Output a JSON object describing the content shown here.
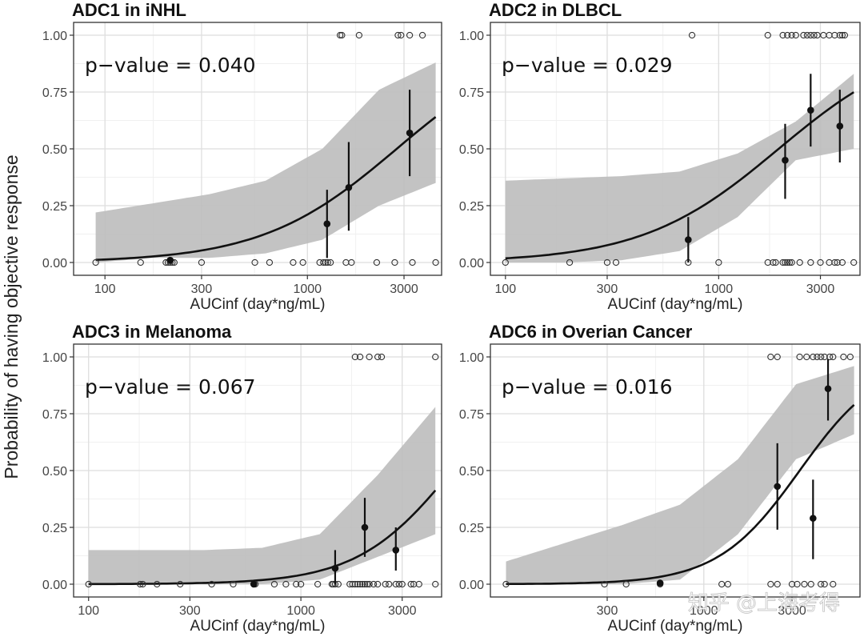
{
  "figure": {
    "ylabel": "Probability of having objective response",
    "watermark": "知乎 @上海考得"
  },
  "chart_data": [
    {
      "type": "scatter",
      "title": "ADC1 in iNHL",
      "annotation": "p−value = 0.040",
      "xlabel": "AUCinf (day*ng/mL)",
      "ylabel": "Probability of having objective response",
      "x_scale": "log",
      "xlim": [
        70,
        4600
      ],
      "ylim": [
        0,
        1
      ],
      "x_ticks": [
        100,
        300,
        1000,
        3000
      ],
      "x_tick_labels": [
        "100",
        "300",
        "1000",
        "3000"
      ],
      "y_ticks": [
        0,
        0.25,
        0.5,
        0.75,
        1
      ],
      "y_tick_labels": [
        "0.00",
        "0.25",
        "0.50",
        "0.75",
        "1.00"
      ],
      "grid": true,
      "logistic": {
        "a": -10.3,
        "b": 1.3,
        "ci_low": [
          0,
          0.02,
          0.02,
          0.04,
          0.1,
          0.25,
          0.35
        ],
        "ci_high": [
          0.22,
          0.26,
          0.3,
          0.36,
          0.5,
          0.76,
          0.88
        ],
        "x_range": [
          90,
          4300
        ]
      },
      "binned": [
        {
          "x": 210,
          "y": 0.01,
          "lo": 0.0,
          "hi": 0.02
        },
        {
          "x": 1250,
          "y": 0.17,
          "lo": 0.02,
          "hi": 0.32
        },
        {
          "x": 1600,
          "y": 0.33,
          "lo": 0.14,
          "hi": 0.53
        },
        {
          "x": 3200,
          "y": 0.57,
          "lo": 0.38,
          "hi": 0.76
        }
      ],
      "responders_x": [
        1450,
        1480,
        1800,
        2800,
        2900,
        3200,
        3700
      ],
      "nonresponders_x": [
        90,
        150,
        200,
        205,
        210,
        215,
        220,
        300,
        550,
        650,
        850,
        950,
        1150,
        1200,
        1230,
        1260,
        1300,
        1550,
        1650,
        2200,
        2700,
        3300,
        4300
      ]
    },
    {
      "type": "scatter",
      "title": "ADC2 in DLBCL",
      "annotation": "p−value = 0.029",
      "xlabel": "AUCinf (day*ng/mL)",
      "ylabel": "Probability of having objective response",
      "x_scale": "log",
      "xlim": [
        85,
        4600
      ],
      "ylim": [
        0,
        1
      ],
      "x_ticks": [
        100,
        300,
        1000,
        3000
      ],
      "x_tick_labels": [
        "100",
        "300",
        "1000",
        "3000"
      ],
      "y_ticks": [
        0,
        0.25,
        0.5,
        0.75,
        1
      ],
      "y_tick_labels": [
        "0.00",
        "0.25",
        "0.50",
        "0.75",
        "1.00"
      ],
      "grid": true,
      "logistic": {
        "a": -10.2,
        "b": 1.35,
        "ci_low": [
          0,
          0.0,
          0.01,
          0.05,
          0.2,
          0.45,
          0.5
        ],
        "ci_high": [
          0.36,
          0.37,
          0.38,
          0.4,
          0.48,
          0.62,
          0.83
        ],
        "x_range": [
          100,
          4300
        ]
      },
      "binned": [
        {
          "x": 720,
          "y": 0.1,
          "lo": 0.0,
          "hi": 0.2
        },
        {
          "x": 2050,
          "y": 0.45,
          "lo": 0.28,
          "hi": 0.61
        },
        {
          "x": 2700,
          "y": 0.67,
          "lo": 0.51,
          "hi": 0.83
        },
        {
          "x": 3700,
          "y": 0.6,
          "lo": 0.44,
          "hi": 0.76
        }
      ],
      "responders_x": [
        750,
        1700,
        2000,
        2100,
        2200,
        2300,
        2500,
        2600,
        2700,
        2800,
        2900,
        3100,
        3300,
        3500,
        3700,
        3800,
        3900
      ],
      "nonresponders_x": [
        100,
        200,
        300,
        330,
        720,
        1000,
        1700,
        1800,
        1850,
        2000,
        2050,
        2100,
        2150,
        2200,
        2400,
        2700,
        3000,
        3300,
        3500,
        3600,
        3800,
        4300
      ]
    },
    {
      "type": "scatter",
      "title": "ADC3 in Melanoma",
      "annotation": "p−value = 0.067",
      "xlabel": "AUCinf (day*ng/mL)",
      "ylabel": "Probability of having objective response",
      "x_scale": "log",
      "xlim": [
        85,
        4600
      ],
      "ylim": [
        0,
        1
      ],
      "x_ticks": [
        100,
        300,
        1000,
        3000
      ],
      "x_tick_labels": [
        "100",
        "300",
        "1000",
        "3000"
      ],
      "y_ticks": [
        0,
        0.25,
        0.5,
        0.75,
        1
      ],
      "y_tick_labels": [
        "0.00",
        "0.25",
        "0.50",
        "0.75",
        "1.00"
      ],
      "grid": true,
      "logistic": {
        "a": -16.5,
        "b": 1.93,
        "ci_low": [
          0,
          0.0,
          0.0,
          0.0,
          0.02,
          0.12,
          0.22
        ],
        "ci_high": [
          0.15,
          0.15,
          0.15,
          0.16,
          0.22,
          0.48,
          0.78
        ],
        "x_range": [
          100,
          4300
        ]
      },
      "binned": [
        {
          "x": 600,
          "y": 0.0,
          "lo": 0.0,
          "hi": 0.0
        },
        {
          "x": 1450,
          "y": 0.07,
          "lo": 0.0,
          "hi": 0.15
        },
        {
          "x": 2000,
          "y": 0.25,
          "lo": 0.12,
          "hi": 0.38
        },
        {
          "x": 2800,
          "y": 0.15,
          "lo": 0.06,
          "hi": 0.25
        }
      ],
      "responders_x": [
        1800,
        1900,
        2100,
        2300,
        2400,
        4300
      ],
      "nonresponders_x": [
        100,
        175,
        180,
        210,
        270,
        380,
        480,
        600,
        610,
        750,
        850,
        950,
        1000,
        1200,
        1400,
        1420,
        1450,
        1500,
        1700,
        1750,
        1800,
        1850,
        1900,
        1950,
        2000,
        2050,
        2100,
        2200,
        2300,
        2500,
        2600,
        2800,
        2900,
        3000,
        3300,
        3400,
        3600,
        4300
      ]
    },
    {
      "type": "scatter",
      "title": "ADC6 in Overian Cancer",
      "annotation": "p−value = 0.016",
      "xlabel": "AUCinf (day*ng/mL)",
      "ylabel": "Probability of having objective response",
      "x_scale": "log",
      "xlim": [
        70,
        7000
      ],
      "ylim": [
        0,
        1
      ],
      "x_ticks": [
        300,
        1000,
        3000
      ],
      "x_tick_labels": [
        "300",
        "1000",
        "3000"
      ],
      "y_ticks": [
        0,
        0.25,
        0.5,
        0.75,
        1
      ],
      "y_tick_labels": [
        "0.00",
        "0.25",
        "0.50",
        "0.75",
        "1.00"
      ],
      "grid": true,
      "logistic": {
        "a": -15.8,
        "b": 1.95,
        "ci_low": [
          0,
          0.0,
          0.0,
          0.02,
          0.22,
          0.55,
          0.66
        ],
        "ci_high": [
          0.1,
          0.18,
          0.26,
          0.35,
          0.55,
          0.88,
          0.96
        ],
        "x_range": [
          85,
          6500
        ]
      },
      "binned": [
        {
          "x": 580,
          "y": 0.005,
          "lo": 0.0,
          "hi": 0.01
        },
        {
          "x": 2500,
          "y": 0.43,
          "lo": 0.24,
          "hi": 0.62
        },
        {
          "x": 3900,
          "y": 0.29,
          "lo": 0.11,
          "hi": 0.46
        },
        {
          "x": 4700,
          "y": 0.86,
          "lo": 0.72,
          "hi": 0.99
        }
      ],
      "responders_x": [
        2300,
        2500,
        3300,
        3600,
        3900,
        4100,
        4300,
        4500,
        4800,
        5000,
        5700,
        6200
      ],
      "nonresponders_x": [
        85,
        290,
        380,
        580,
        1250,
        1350,
        2300,
        2500,
        3000,
        3200,
        3500,
        3800,
        4300,
        4500,
        5000
      ]
    }
  ]
}
